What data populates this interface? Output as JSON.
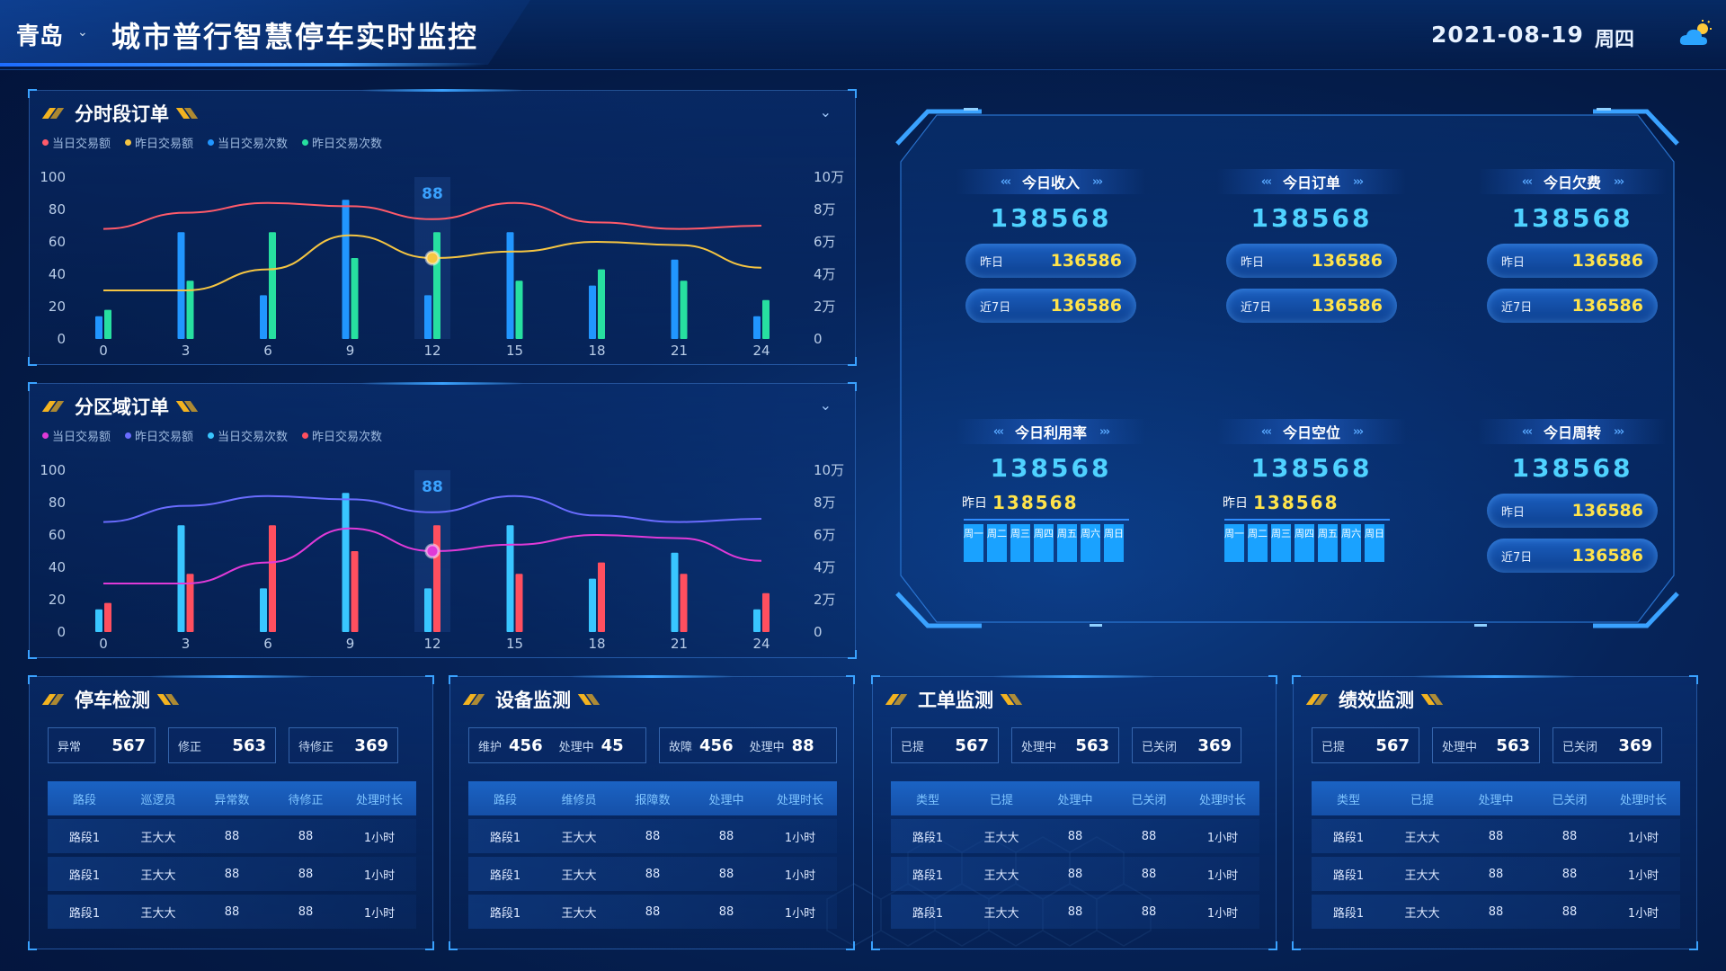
{
  "header": {
    "city": "青岛",
    "title": "城市普行智慧停车实时监控",
    "date": "2021-08-19",
    "weekday": "周四",
    "weather_icon": "sunny-cloud-icon"
  },
  "colors": {
    "accent": "#3aa2ff",
    "highlight": "#ffe34a",
    "kpi_value": "#4fd2ff"
  },
  "panels": {
    "hourly": {
      "title": "分时段订单"
    },
    "region": {
      "title": "分区域订单"
    }
  },
  "chart_data": [
    {
      "type": "bar",
      "title": "分时段订单",
      "legend": [
        "当日交易额",
        "昨日交易额",
        "当日交易次数",
        "昨日交易次数"
      ],
      "series_colors": [
        "#ff5a6a",
        "#f5c542",
        "#2196ff",
        "#27e0a0"
      ],
      "categories": [
        "0",
        "3",
        "6",
        "9",
        "12",
        "15",
        "18",
        "21",
        "24"
      ],
      "ylim": [
        0,
        100
      ],
      "yticks": [
        "100",
        "80",
        "60",
        "40",
        "20",
        "0"
      ],
      "y2ticks": [
        "10万",
        "8万",
        "6万",
        "4万",
        "2万",
        "0"
      ],
      "series": [
        {
          "name": "当日交易次数",
          "kind": "bar",
          "values": [
            14,
            66,
            27,
            86,
            27,
            66,
            33,
            49,
            14
          ]
        },
        {
          "name": "昨日交易次数",
          "kind": "bar",
          "values": [
            18,
            36,
            66,
            50,
            66,
            36,
            43,
            36,
            24
          ]
        },
        {
          "name": "当日交易额",
          "kind": "line",
          "values": [
            68,
            78,
            84,
            82,
            74,
            84,
            72,
            68,
            70
          ]
        },
        {
          "name": "昨日交易额",
          "kind": "line",
          "values": [
            30,
            30,
            43,
            64,
            50,
            54,
            60,
            58,
            44
          ]
        }
      ],
      "annotation": {
        "x": "12",
        "value": "88"
      },
      "legend_position": "top-left"
    },
    {
      "type": "bar",
      "title": "分区域订单",
      "legend": [
        "当日交易额",
        "昨日交易额",
        "当日交易次数",
        "昨日交易次数"
      ],
      "series_colors": [
        "#e03ad8",
        "#6a6cff",
        "#39c6ff",
        "#ff4f5f"
      ],
      "categories": [
        "0",
        "3",
        "6",
        "9",
        "12",
        "15",
        "18",
        "21",
        "24"
      ],
      "ylim": [
        0,
        100
      ],
      "yticks": [
        "100",
        "80",
        "60",
        "40",
        "20",
        "0"
      ],
      "y2ticks": [
        "10万",
        "8万",
        "6万",
        "4万",
        "2万",
        "0"
      ],
      "series": [
        {
          "name": "当日交易次数",
          "kind": "bar",
          "values": [
            14,
            66,
            27,
            86,
            27,
            66,
            33,
            49,
            14
          ]
        },
        {
          "name": "昨日交易次数",
          "kind": "bar",
          "values": [
            18,
            36,
            66,
            50,
            66,
            36,
            43,
            36,
            24
          ]
        },
        {
          "name": "昨日交易额",
          "kind": "line",
          "values": [
            68,
            78,
            84,
            82,
            74,
            84,
            72,
            68,
            70
          ]
        },
        {
          "name": "当日交易额",
          "kind": "line",
          "values": [
            30,
            30,
            43,
            64,
            50,
            54,
            60,
            58,
            44
          ]
        }
      ],
      "annotation": {
        "x": "12",
        "value": "88"
      },
      "legend_position": "top-left"
    }
  ],
  "kpis": {
    "income": {
      "label": "今日收入",
      "value": "138568",
      "y_label": "昨日",
      "y_value": "136586",
      "w_label": "近7日",
      "w_value": "136586"
    },
    "orders": {
      "label": "今日订单",
      "value": "138568",
      "y_label": "昨日",
      "y_value": "136586",
      "w_label": "近7日",
      "w_value": "136586"
    },
    "arrears": {
      "label": "今日欠费",
      "value": "138568",
      "y_label": "昨日",
      "y_value": "136586",
      "w_label": "近7日",
      "w_value": "136586"
    },
    "usage": {
      "label": "今日利用率",
      "value": "138568",
      "y_label": "昨日",
      "y_value": "138568"
    },
    "vacancy": {
      "label": "今日空位",
      "value": "138568",
      "y_label": "昨日",
      "y_value": "138568"
    },
    "turnover": {
      "label": "今日周转",
      "value": "138568",
      "y_label": "昨日",
      "y_value": "136586",
      "w_label": "近7日",
      "w_value": "136586"
    },
    "days": [
      "周一",
      "周二",
      "周三",
      "周四",
      "周五",
      "周六",
      "周日"
    ]
  },
  "parking": {
    "title": "停车检测",
    "stats": [
      {
        "label": "异常",
        "value": "567"
      },
      {
        "label": "修正",
        "value": "563"
      },
      {
        "label": "待修正",
        "value": "369"
      }
    ],
    "columns": [
      "路段",
      "巡逻员",
      "异常数",
      "待修正",
      "处理时长"
    ],
    "rows": [
      [
        "路段1",
        "王大大",
        "88",
        "88",
        "1小时"
      ],
      [
        "路段1",
        "王大大",
        "88",
        "88",
        "1小时"
      ],
      [
        "路段1",
        "王大大",
        "88",
        "88",
        "1小时"
      ]
    ]
  },
  "device": {
    "title": "设备监测",
    "stats": [
      {
        "l1": "维护",
        "v1": "456",
        "l2": "处理中",
        "v2": "45"
      },
      {
        "l1": "故障",
        "v1": "456",
        "l2": "处理中",
        "v2": "88"
      }
    ],
    "columns": [
      "路段",
      "维修员",
      "报障数",
      "处理中",
      "处理时长"
    ],
    "rows": [
      [
        "路段1",
        "王大大",
        "88",
        "88",
        "1小时"
      ],
      [
        "路段1",
        "王大大",
        "88",
        "88",
        "1小时"
      ],
      [
        "路段1",
        "王大大",
        "88",
        "88",
        "1小时"
      ]
    ]
  },
  "workorder": {
    "title": "工单监测",
    "stats": [
      {
        "label": "已提",
        "value": "567"
      },
      {
        "label": "处理中",
        "value": "563"
      },
      {
        "label": "已关闭",
        "value": "369"
      }
    ],
    "columns": [
      "类型",
      "已提",
      "处理中",
      "已关闭",
      "处理时长"
    ],
    "rows": [
      [
        "路段1",
        "王大大",
        "88",
        "88",
        "1小时"
      ],
      [
        "路段1",
        "王大大",
        "88",
        "88",
        "1小时"
      ],
      [
        "路段1",
        "王大大",
        "88",
        "88",
        "1小时"
      ]
    ]
  },
  "performance": {
    "title": "绩效监测",
    "stats": [
      {
        "label": "已提",
        "value": "567"
      },
      {
        "label": "处理中",
        "value": "563"
      },
      {
        "label": "已关闭",
        "value": "369"
      }
    ],
    "columns": [
      "类型",
      "已提",
      "处理中",
      "已关闭",
      "处理时长"
    ],
    "rows": [
      [
        "路段1",
        "王大大",
        "88",
        "88",
        "1小时"
      ],
      [
        "路段1",
        "王大大",
        "88",
        "88",
        "1小时"
      ],
      [
        "路段1",
        "王大大",
        "88",
        "88",
        "1小时"
      ]
    ]
  }
}
